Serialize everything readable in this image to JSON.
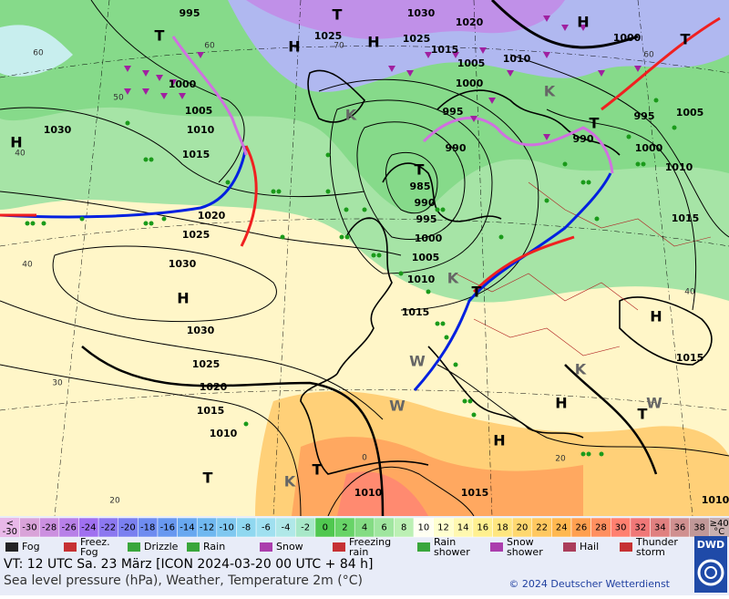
{
  "map": {
    "isobar_labels": [
      "995",
      "1030",
      "1020",
      "1025",
      "1025",
      "1015",
      "1010",
      "1005",
      "1000",
      "1000",
      "995",
      "990",
      "990",
      "995",
      "1000",
      "1005",
      "1010",
      "1015",
      "1000",
      "1005",
      "1010",
      "1015",
      "1020",
      "1025",
      "1030",
      "1030",
      "1030",
      "1025",
      "1020",
      "1015",
      "1010",
      "985",
      "990",
      "995",
      "1000",
      "1005",
      "1010",
      "1015",
      "1010",
      "1015",
      "1015",
      "1010"
    ],
    "centers": [
      "H",
      "H",
      "H",
      "H",
      "T",
      "T",
      "T",
      "T",
      "T",
      "H",
      "T",
      "H",
      "H",
      "H",
      "T",
      "T",
      "T",
      "K",
      "K",
      "K",
      "K",
      "K",
      "W",
      "W",
      "W"
    ],
    "temperature_labels": [
      "40",
      "40",
      "30",
      "20",
      "60",
      "50",
      "60",
      "60",
      "40",
      "20",
      "0",
      "70"
    ]
  },
  "colorbar": {
    "low_label": [
      "<",
      "-30"
    ],
    "labels": [
      "-30",
      "-28",
      "-26",
      "-24",
      "-22",
      "-20",
      "-18",
      "-16",
      "-14",
      "-12",
      "-10",
      "-8",
      "-6",
      "-4",
      "-2",
      "0",
      "2",
      "4",
      "6",
      "8",
      "10",
      "12",
      "14",
      "16",
      "18",
      "20",
      "22",
      "24",
      "26",
      "28",
      "30",
      "32",
      "34",
      "36",
      "38"
    ],
    "high_label": [
      "≥40",
      "°C"
    ],
    "colors": [
      "#d9a3d9",
      "#cc90e0",
      "#b880e8",
      "#a070f0",
      "#8c78f0",
      "#7a80f0",
      "#6e8cf0",
      "#6898f0",
      "#68a8f0",
      "#70b8f0",
      "#80c8f0",
      "#90d8f0",
      "#a0e0f0",
      "#b0e8e8",
      "#a8e8c8",
      "#50c850",
      "#68d468",
      "#84dc84",
      "#a0e6a0",
      "#bcf0b4",
      "#fffff2",
      "#ffffd0",
      "#fff8b0",
      "#fff090",
      "#ffe680",
      "#ffd870",
      "#ffc860",
      "#ffb850",
      "#ffa050",
      "#ff9060",
      "#ff8070",
      "#f07878",
      "#e08080",
      "#d09090",
      "#c09898"
    ],
    "low_color": "#e8b8e8",
    "high_color": "#c8b0b0"
  },
  "legend": [
    [
      "Fog"
    ],
    [
      "Freez.",
      "Fog"
    ],
    [
      "Drizzle"
    ],
    [
      "Rain"
    ],
    [
      "Snow"
    ],
    [
      "Freezing",
      "rain"
    ],
    [
      "Rain",
      "shower"
    ],
    [
      "Snow",
      "shower"
    ],
    [
      "Hail"
    ],
    [
      "Thunder",
      "storm"
    ]
  ],
  "footer": {
    "line1": "VT: 12 UTC Sa.  23 März [ICON 2024-03-20  00 UTC + 84 h]",
    "line2": "Sea level pressure (hPa), Weather, Temperature 2m (°C)",
    "copyright": "© 2024 Deutscher Wetterdienst",
    "logo": "DWD"
  }
}
